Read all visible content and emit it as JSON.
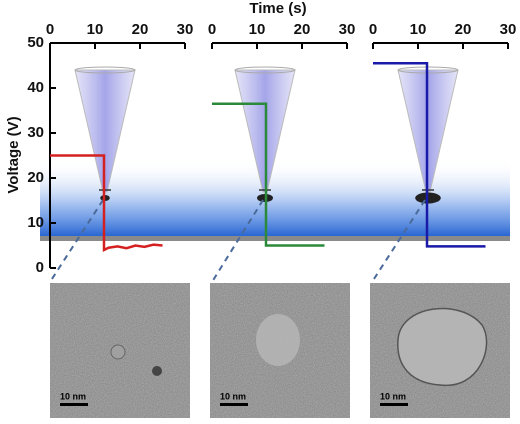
{
  "chart_data": [
    {
      "type": "line",
      "xlabel": "Time (s)",
      "ylabel": "Voltage (V)",
      "xlim": [
        0,
        30
      ],
      "xticks": [
        0,
        10,
        20,
        30
      ],
      "ylim": [
        0,
        50
      ],
      "yticks": [
        0,
        10,
        20,
        30,
        40,
        50
      ],
      "series": [
        {
          "color": "#d42020",
          "x": [
            0,
            12,
            12,
            13,
            15,
            17,
            19,
            21,
            23,
            25
          ],
          "values": [
            25,
            25,
            4,
            4.5,
            4.8,
            4.4,
            5,
            4.7,
            5.2,
            5
          ]
        }
      ]
    },
    {
      "type": "line",
      "xlim": [
        0,
        30
      ],
      "xticks": [
        0,
        10,
        20,
        30
      ],
      "ylim": [
        0,
        50
      ],
      "series": [
        {
          "color": "#2a8a3a",
          "x": [
            0,
            12,
            12,
            25
          ],
          "values": [
            36.5,
            36.5,
            5,
            5
          ]
        }
      ]
    },
    {
      "type": "line",
      "xlim": [
        0,
        30
      ],
      "xticks": [
        0,
        10,
        20,
        30
      ],
      "ylim": [
        0,
        50
      ],
      "series": [
        {
          "color": "#1a1aa8",
          "x": [
            0,
            12,
            12,
            25
          ],
          "values": [
            45.5,
            45.5,
            4.8,
            4.8
          ]
        }
      ]
    }
  ],
  "images": [
    {
      "scale_bar": "10 nm"
    },
    {
      "scale_bar": "10 nm"
    },
    {
      "scale_bar": "10 nm"
    }
  ]
}
